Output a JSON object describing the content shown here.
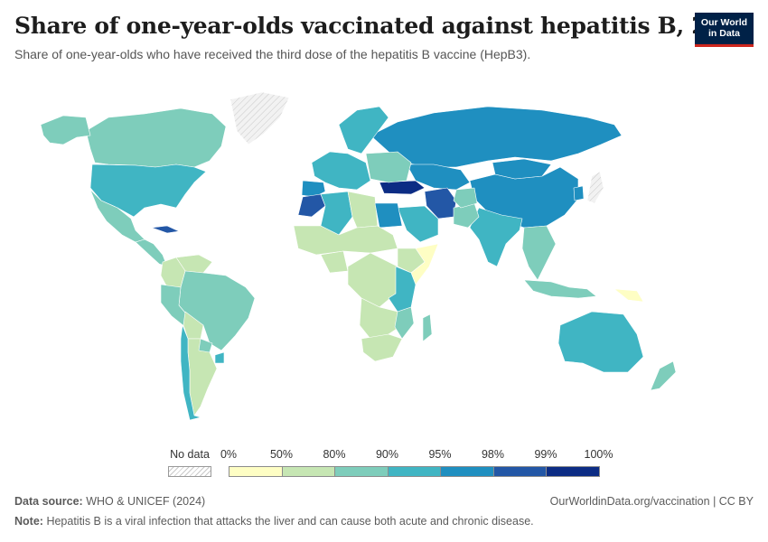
{
  "header": {
    "title": "Share of one-year-olds vaccinated against hepatitis B, 2023",
    "subtitle": "Share of one-year-olds who have received the third dose of the hepatitis B vaccine (HepB3)."
  },
  "logo": {
    "line1": "Our World",
    "line2": "in Data",
    "bg": "#002147",
    "accent": "#ce261e"
  },
  "legend": {
    "nodata_label": "No data",
    "bins": [
      {
        "from": "0%",
        "to": "50%",
        "color": "#fefec4"
      },
      {
        "from": "50%",
        "to": "80%",
        "color": "#c6e6b3"
      },
      {
        "from": "80%",
        "to": "90%",
        "color": "#7ecdbb"
      },
      {
        "from": "90%",
        "to": "95%",
        "color": "#40b5c3"
      },
      {
        "from": "95%",
        "to": "98%",
        "color": "#1f8fc0"
      },
      {
        "from": "98%",
        "to": "99%",
        "color": "#2357a6"
      },
      {
        "from": "99%",
        "to": "100%",
        "color": "#0c2c84"
      }
    ],
    "ticks": [
      "0%",
      "50%",
      "80%",
      "90%",
      "95%",
      "98%",
      "99%",
      "100%"
    ]
  },
  "footer": {
    "source_label": "Data source:",
    "source_text": "WHO & UNICEF (2024)",
    "url_text": "OurWorldinData.org/vaccination | CC BY",
    "note_label": "Note:",
    "note_text": "Hepatitis B is a viral infection that attacks the liver and can cause both acute and chronic disease."
  },
  "map": {
    "nodata_color": "#e6e6e6",
    "regions": [
      {
        "name": "Canada",
        "bin": 2
      },
      {
        "name": "Alaska",
        "bin": 2
      },
      {
        "name": "United States",
        "bin": 3
      },
      {
        "name": "Mexico",
        "bin": 2
      },
      {
        "name": "Greenland",
        "bin": null
      },
      {
        "name": "Central America",
        "bin": 2
      },
      {
        "name": "Cuba",
        "bin": 5
      },
      {
        "name": "Venezuela",
        "bin": 1
      },
      {
        "name": "Colombia",
        "bin": 1
      },
      {
        "name": "Brazil",
        "bin": 2
      },
      {
        "name": "Peru",
        "bin": 2
      },
      {
        "name": "Bolivia",
        "bin": 1
      },
      {
        "name": "Argentina",
        "bin": 1
      },
      {
        "name": "Chile",
        "bin": 3
      },
      {
        "name": "Paraguay",
        "bin": 2
      },
      {
        "name": "Uruguay",
        "bin": 3
      },
      {
        "name": "Russia",
        "bin": 4
      },
      {
        "name": "China",
        "bin": 4
      },
      {
        "name": "Mongolia",
        "bin": 4
      },
      {
        "name": "Kazakhstan",
        "bin": 4
      },
      {
        "name": "Iran",
        "bin": 5
      },
      {
        "name": "Turkey",
        "bin": 6
      },
      {
        "name": "Saudi Arabia",
        "bin": 3
      },
      {
        "name": "India",
        "bin": 3
      },
      {
        "name": "Pakistan",
        "bin": 2
      },
      {
        "name": "Afghanistan",
        "bin": 2
      },
      {
        "name": "Southeast Asia",
        "bin": 2
      },
      {
        "name": "Indonesia",
        "bin": 2
      },
      {
        "name": "Japan",
        "bin": null
      },
      {
        "name": "Korea",
        "bin": 4
      },
      {
        "name": "Australia",
        "bin": 3
      },
      {
        "name": "New Zealand",
        "bin": 2
      },
      {
        "name": "Papua New Guinea",
        "bin": 0
      },
      {
        "name": "Scandinavia",
        "bin": 3
      },
      {
        "name": "Western Europe",
        "bin": 3
      },
      {
        "name": "Eastern Europe",
        "bin": 2
      },
      {
        "name": "Iberia",
        "bin": 4
      },
      {
        "name": "Morocco",
        "bin": 5
      },
      {
        "name": "Algeria",
        "bin": 3
      },
      {
        "name": "Libya",
        "bin": 1
      },
      {
        "name": "Egypt",
        "bin": 4
      },
      {
        "name": "Sahel",
        "bin": 1
      },
      {
        "name": "Nigeria",
        "bin": 1
      },
      {
        "name": "Central Africa",
        "bin": 1
      },
      {
        "name": "Somalia",
        "bin": 0
      },
      {
        "name": "Ethiopia",
        "bin": 1
      },
      {
        "name": "East Africa",
        "bin": 3
      },
      {
        "name": "Southern Africa",
        "bin": 1
      },
      {
        "name": "Mozambique",
        "bin": 2
      },
      {
        "name": "South Africa",
        "bin": 1
      },
      {
        "name": "Madagascar",
        "bin": 2
      }
    ]
  }
}
